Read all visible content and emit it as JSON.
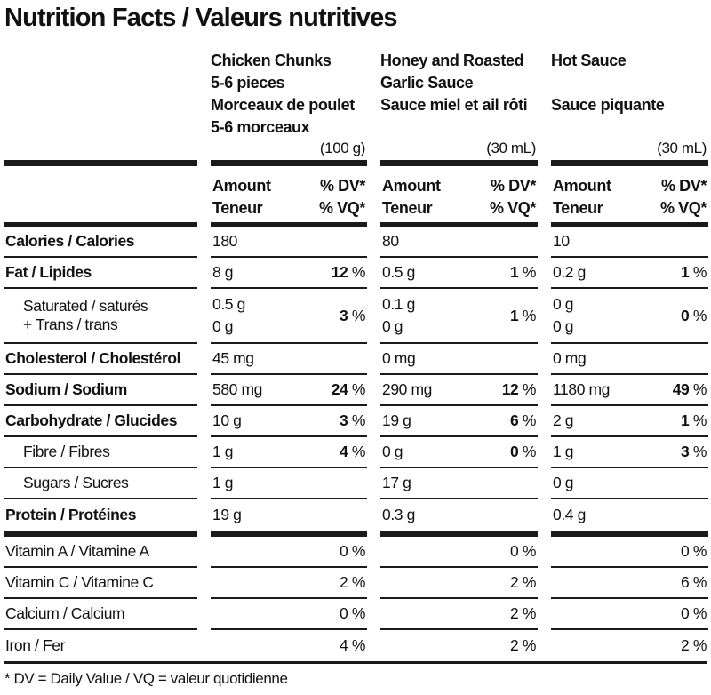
{
  "title": "Nutrition Facts / Valeurs nutritives",
  "products": [
    {
      "name_lines": [
        "Chicken Chunks",
        "5-6 pieces",
        "Morceaux de poulet",
        "5-6 morceaux"
      ],
      "serving": "(100 g)"
    },
    {
      "name_lines": [
        "Honey and Roasted",
        "Garlic Sauce",
        "Sauce miel et ail rôti",
        ""
      ],
      "serving": "(30 mL)"
    },
    {
      "name_lines": [
        "Hot Sauce",
        "",
        "Sauce piquante",
        ""
      ],
      "serving": "(30 mL)"
    }
  ],
  "column_header": {
    "amount": "Amount",
    "teneur": "Teneur",
    "dv": "% DV*",
    "vq": "% VQ*"
  },
  "nutrients": [
    {
      "label": "Calories / Calories",
      "bold": true,
      "values": [
        {
          "amount": "180",
          "dv": ""
        },
        {
          "amount": "80",
          "dv": ""
        },
        {
          "amount": "10",
          "dv": ""
        }
      ]
    },
    {
      "label": "Fat / Lipides",
      "bold": true,
      "values": [
        {
          "amount": "8 g",
          "dv": "12"
        },
        {
          "amount": "0.5 g",
          "dv": "1"
        },
        {
          "amount": "0.2 g",
          "dv": "1"
        }
      ]
    },
    {
      "label": "Saturated / saturés",
      "label2": "+ Trans / trans",
      "indent": true,
      "values": [
        {
          "amount": "0.5 g",
          "amount2": "0 g",
          "dv": "3"
        },
        {
          "amount": "0.1 g",
          "amount2": "0 g",
          "dv": "1"
        },
        {
          "amount": "0 g",
          "amount2": "0 g",
          "dv": "0"
        }
      ]
    },
    {
      "label": "Cholesterol / Cholestérol",
      "bold": true,
      "values": [
        {
          "amount": "45 mg",
          "dv": ""
        },
        {
          "amount": "0 mg",
          "dv": ""
        },
        {
          "amount": "0 mg",
          "dv": ""
        }
      ]
    },
    {
      "label": "Sodium / Sodium",
      "bold": true,
      "values": [
        {
          "amount": "580 mg",
          "dv": "24"
        },
        {
          "amount": "290 mg",
          "dv": "12"
        },
        {
          "amount": "1180 mg",
          "dv": "49"
        }
      ]
    },
    {
      "label": "Carbohydrate / Glucides",
      "bold": true,
      "values": [
        {
          "amount": "10 g",
          "dv": "3"
        },
        {
          "amount": "19 g",
          "dv": "6"
        },
        {
          "amount": "2 g",
          "dv": "1"
        }
      ]
    },
    {
      "label": "Fibre / Fibres",
      "indent": true,
      "values": [
        {
          "amount": "1 g",
          "dv": "4"
        },
        {
          "amount": "0 g",
          "dv": "0"
        },
        {
          "amount": "1 g",
          "dv": "3"
        }
      ]
    },
    {
      "label": "Sugars / Sucres",
      "indent": true,
      "values": [
        {
          "amount": "1 g",
          "dv": ""
        },
        {
          "amount": "17 g",
          "dv": ""
        },
        {
          "amount": "0 g",
          "dv": ""
        }
      ]
    },
    {
      "label": "Protein / Protéines",
      "bold": true,
      "values": [
        {
          "amount": "19 g",
          "dv": ""
        },
        {
          "amount": "0.3 g",
          "dv": ""
        },
        {
          "amount": "0.4 g",
          "dv": ""
        }
      ]
    }
  ],
  "vitamins": [
    {
      "label": "Vitamin A / Vitamine A",
      "values": [
        "0 %",
        "0 %",
        "0 %"
      ]
    },
    {
      "label": "Vitamin C / Vitamine C",
      "values": [
        "2 %",
        "2 %",
        "6 %"
      ]
    },
    {
      "label": "Calcium / Calcium",
      "values": [
        "0 %",
        "2 %",
        "0 %"
      ]
    },
    {
      "label": "Iron / Fer",
      "values": [
        "4 %",
        "2 %",
        "2 %"
      ]
    }
  ],
  "percent_sign": "%",
  "footnote": "* DV = Daily Value / VQ = valeur quotidienne"
}
